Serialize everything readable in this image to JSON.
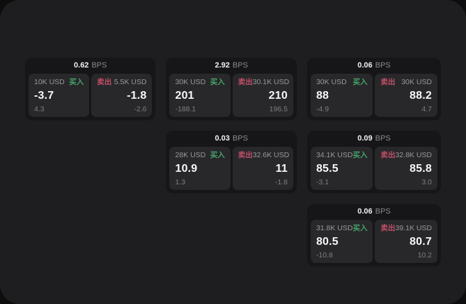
{
  "app": {
    "unit_suffix": "BPS",
    "buy_label": "买入",
    "sell_label": "卖出"
  },
  "colors": {
    "buy_green": "#46a268",
    "sell_red": "#c04f66",
    "page_bg": "#1e1e20",
    "card_bg": "#161618",
    "panel_bg": "#28282b"
  },
  "cards": [
    {
      "bps": "0.62",
      "buy": {
        "notional": "10K USD",
        "price": "-3.7",
        "delta": "4.3"
      },
      "sell": {
        "notional": "5.5K USD",
        "price": "-1.8",
        "delta": "-2.6"
      }
    },
    {
      "bps": "2.92",
      "buy": {
        "notional": "30K USD",
        "price": "201",
        "delta": "-188.1"
      },
      "sell": {
        "notional": "30.1K USD",
        "price": "210",
        "delta": "196.5"
      }
    },
    {
      "bps": "0.06",
      "buy": {
        "notional": "30K USD",
        "price": "88",
        "delta": "-4.9"
      },
      "sell": {
        "notional": "30K USD",
        "price": "88.2",
        "delta": "4.7"
      }
    },
    {
      "bps": "0.03",
      "buy": {
        "notional": "28K USD",
        "price": "10.9",
        "delta": "1.3"
      },
      "sell": {
        "notional": "32.6K USD",
        "price": "11",
        "delta": "-1.8"
      }
    },
    {
      "bps": "0.09",
      "buy": {
        "notional": "34.1K USD",
        "price": "85.5",
        "delta": "-3.1"
      },
      "sell": {
        "notional": "32.8K USD",
        "price": "85.8",
        "delta": "3.0"
      }
    },
    {
      "bps": "0.06",
      "buy": {
        "notional": "31.8K USD",
        "price": "80.5",
        "delta": "-10.8"
      },
      "sell": {
        "notional": "39.1K USD",
        "price": "80.7",
        "delta": "10.2"
      }
    }
  ]
}
